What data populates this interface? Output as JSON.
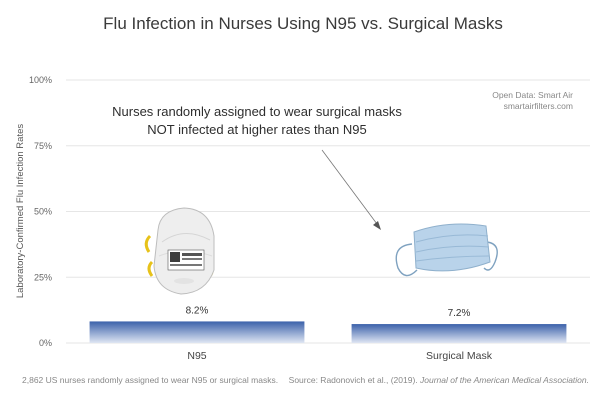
{
  "chart_data": {
    "type": "bar",
    "title": "Flu Infection in Nurses Using N95 vs. Surgical Masks",
    "ylabel": "Laboratory-Confirmed Flu Infection Rates",
    "xlabel": "",
    "categories": [
      "N95",
      "Surgical Mask"
    ],
    "values": [
      8.2,
      7.2
    ],
    "value_labels": [
      "8.2%",
      "7.2%"
    ],
    "ylim": [
      0,
      100
    ],
    "yticks": [
      0,
      25,
      50,
      75,
      100
    ],
    "ytick_labels": [
      "0%",
      "25%",
      "50%",
      "75%",
      "100%"
    ],
    "grid": true,
    "bar_color": "#3f66ad",
    "annotation": [
      "Nurses randomly assigned to wear surgical masks",
      "NOT infected at higher rates than N95"
    ],
    "source_box": [
      "Open Data: Smart Air",
      "smartairfilters.com"
    ],
    "footnote": "2,862 US nurses randomly assigned to wear N95 or surgical masks.",
    "citation": {
      "prefix": "Source: Radonovich et al., (2019). ",
      "journal": "Journal of the American Medical Association."
    },
    "images": [
      "n95-mask-image",
      "surgical-mask-image"
    ]
  }
}
